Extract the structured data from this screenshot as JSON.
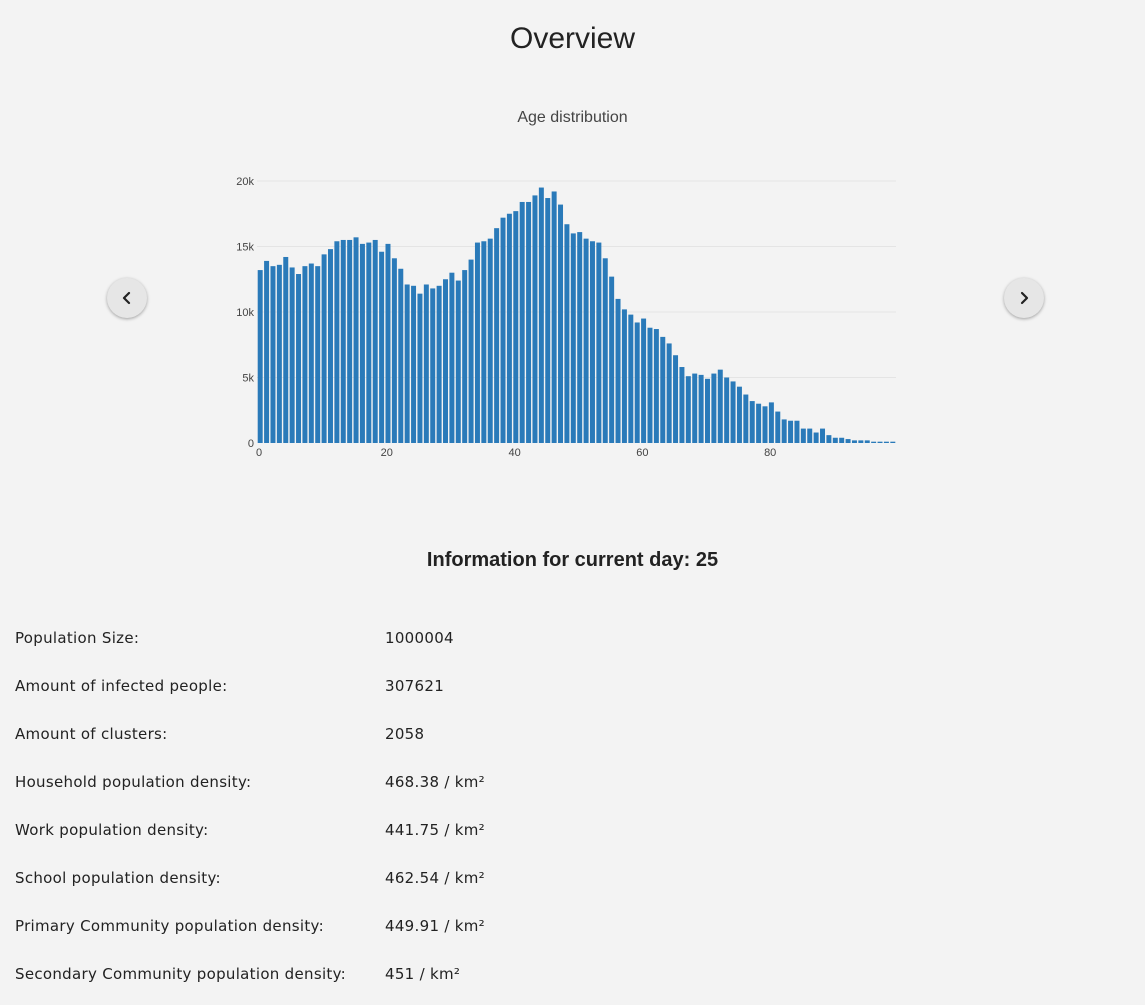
{
  "page": {
    "title": "Overview"
  },
  "nav": {
    "prev_icon": "chevron-left-icon",
    "next_icon": "chevron-right-icon"
  },
  "chart_data": {
    "type": "bar",
    "title": "Age distribution",
    "xlabel": "",
    "ylabel": "",
    "x": [
      0,
      1,
      2,
      3,
      4,
      5,
      6,
      7,
      8,
      9,
      10,
      11,
      12,
      13,
      14,
      15,
      16,
      17,
      18,
      19,
      20,
      21,
      22,
      23,
      24,
      25,
      26,
      27,
      28,
      29,
      30,
      31,
      32,
      33,
      34,
      35,
      36,
      37,
      38,
      39,
      40,
      41,
      42,
      43,
      44,
      45,
      46,
      47,
      48,
      49,
      50,
      51,
      52,
      53,
      54,
      55,
      56,
      57,
      58,
      59,
      60,
      61,
      62,
      63,
      64,
      65,
      66,
      67,
      68,
      69,
      70,
      71,
      72,
      73,
      74,
      75,
      76,
      77,
      78,
      79,
      80,
      81,
      82,
      83,
      84,
      85,
      86,
      87,
      88,
      89,
      90,
      91,
      92,
      93,
      94,
      95,
      96,
      97,
      98,
      99
    ],
    "values": [
      13200,
      13900,
      13500,
      13600,
      14200,
      13400,
      12900,
      13500,
      13700,
      13500,
      14400,
      14800,
      15400,
      15500,
      15500,
      15700,
      15200,
      15300,
      15500,
      14600,
      15200,
      14100,
      13300,
      12100,
      12000,
      11400,
      12100,
      11800,
      12000,
      12500,
      13000,
      12400,
      13200,
      14000,
      15300,
      15400,
      15600,
      16400,
      17200,
      17500,
      17700,
      18400,
      18400,
      18900,
      19500,
      18700,
      19200,
      18200,
      16700,
      16000,
      16100,
      15600,
      15400,
      15300,
      14100,
      12700,
      11000,
      10200,
      9800,
      9200,
      9500,
      8800,
      8700,
      8100,
      7600,
      6700,
      5800,
      5100,
      5300,
      5200,
      4900,
      5300,
      5600,
      5000,
      4700,
      4300,
      3700,
      3200,
      3000,
      2800,
      3100,
      2400,
      1800,
      1700,
      1700,
      1100,
      1100,
      800,
      1100,
      600,
      400,
      400,
      300,
      200,
      200,
      200,
      100,
      100,
      100,
      100
    ],
    "yticks": [
      {
        "value": 0,
        "label": "0"
      },
      {
        "value": 5000,
        "label": "5k"
      },
      {
        "value": 10000,
        "label": "10k"
      },
      {
        "value": 15000,
        "label": "15k"
      },
      {
        "value": 20000,
        "label": "20k"
      }
    ],
    "xticks": [
      {
        "value": 0,
        "label": "0"
      },
      {
        "value": 20,
        "label": "20"
      },
      {
        "value": 40,
        "label": "40"
      },
      {
        "value": 60,
        "label": "60"
      },
      {
        "value": 80,
        "label": "80"
      }
    ],
    "xlim": [
      0,
      100
    ],
    "ylim": [
      0,
      20000
    ],
    "grid": true,
    "legend": "none",
    "bar_color": "#2a7ab9"
  },
  "info": {
    "heading_prefix": "Information for current day: ",
    "current_day": "25",
    "rows": [
      {
        "label": "Population Size:",
        "value": "1000004"
      },
      {
        "label": "Amount of infected people:",
        "value": "307621"
      },
      {
        "label": "Amount of clusters:",
        "value": "2058"
      },
      {
        "label": "Household population density:",
        "value": "468.38 / km²"
      },
      {
        "label": "Work population density:",
        "value": "441.75 / km²"
      },
      {
        "label": "School population density:",
        "value": "462.54 / km²"
      },
      {
        "label": "Primary Community population density:",
        "value": "449.91 / km²"
      },
      {
        "label": "Secondary Community population density:",
        "value": "451 / km²"
      }
    ]
  }
}
